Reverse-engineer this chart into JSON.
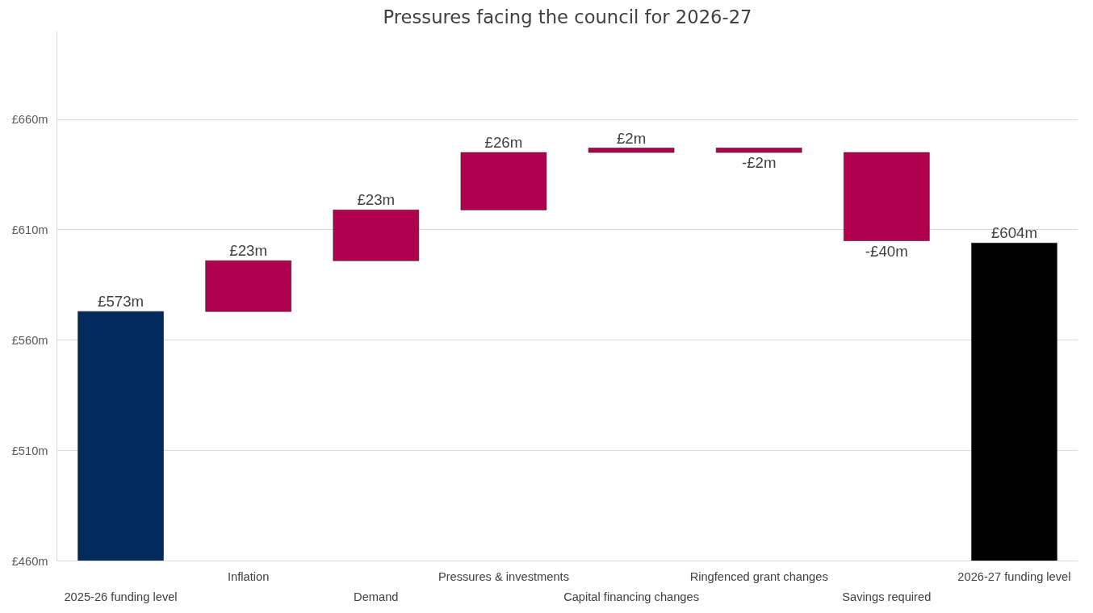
{
  "chart_data": {
    "type": "bar",
    "title": "Pressures facing the council for 2026-27",
    "categories": [
      "2025-26 funding level",
      "Inflation",
      "Demand",
      "Pressures & investments",
      "Capital financing changes",
      "Ringfenced grant changes",
      "Savings required",
      "2026-27 funding level"
    ],
    "values": [
      573,
      23,
      23,
      26,
      2,
      -2,
      -40,
      604
    ],
    "base": [
      null,
      573,
      596,
      619,
      645,
      647,
      645,
      null
    ],
    "colors": [
      "#002b5c",
      "#b0004e",
      "#b0004e",
      "#b0004e",
      "#b0004e",
      "#b0004e",
      "#b0004e",
      "#000000"
    ],
    "value_labels": [
      "£573m",
      "£23m",
      "£23m",
      "£26m",
      "£2m",
      "-£2m",
      "-£40m",
      "£604m"
    ],
    "ylim": [
      460,
      700
    ],
    "yticks": [
      {
        "value": 460,
        "label": "£460m"
      },
      {
        "value": 510,
        "label": "£510m"
      },
      {
        "value": 560,
        "label": "£560m"
      },
      {
        "value": 610,
        "label": "£610m"
      },
      {
        "value": 660,
        "label": "£660m"
      }
    ],
    "grid": "y"
  }
}
